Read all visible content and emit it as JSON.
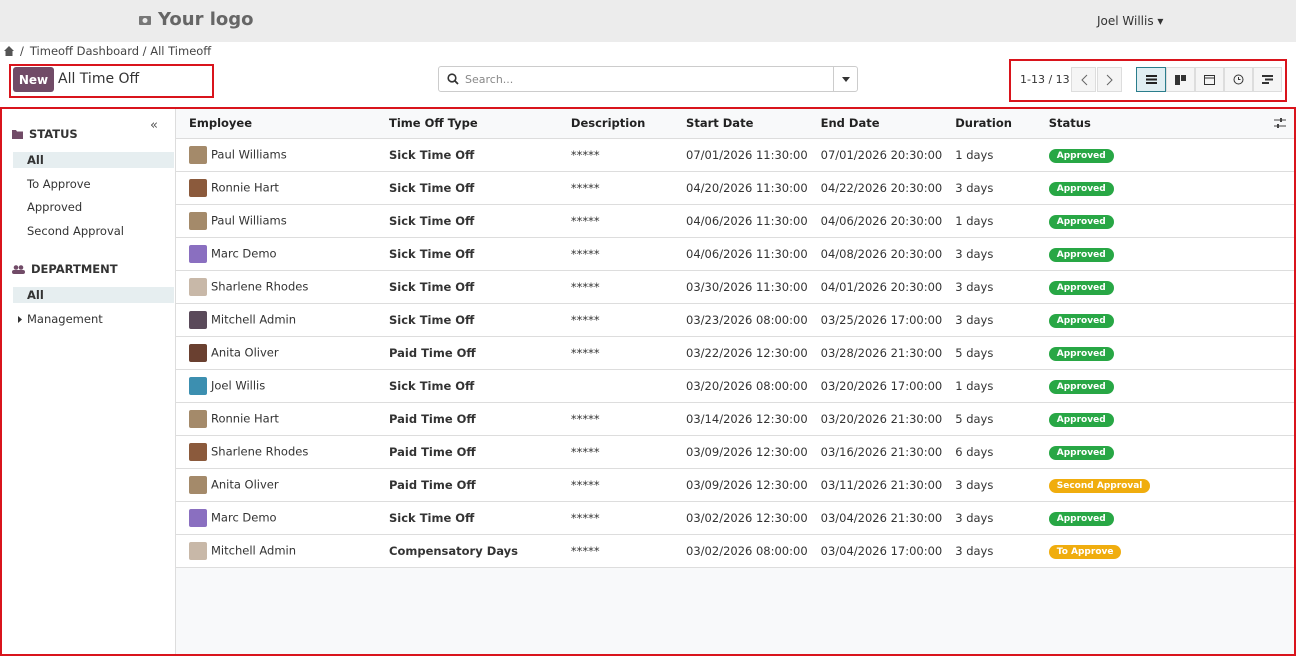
{
  "navbar": {
    "logo": "Your logo",
    "user": "Joel Willis"
  },
  "breadcrumb": {
    "separator": "/",
    "path": "Timeoff Dashboard / All Timeoff"
  },
  "control": {
    "new_button": "New",
    "title": "All Time Off",
    "search_placeholder": "Search...",
    "pager": "1-13 / 13"
  },
  "sidebar": {
    "status": {
      "heading": "STATUS",
      "items": [
        "All",
        "To Approve",
        "Approved",
        "Second Approval"
      ]
    },
    "department": {
      "heading": "DEPARTMENT",
      "items": [
        "All",
        "Management"
      ]
    }
  },
  "table": {
    "columns": [
      "Employee",
      "Time Off Type",
      "Description",
      "Start Date",
      "End Date",
      "Duration",
      "Status"
    ],
    "rows": [
      {
        "cells": [
          "Paul Williams",
          "Sick Time Off",
          "*****",
          "07/01/2026 11:30:00",
          "07/01/2026 20:30:00",
          "1 days",
          "Approved"
        ],
        "status_color": "#28a745"
      },
      {
        "cells": [
          "Ronnie Hart",
          "Sick Time Off",
          "*****",
          "04/20/2026 11:30:00",
          "04/22/2026 20:30:00",
          "3 days",
          "Approved"
        ],
        "status_color": "#28a745"
      },
      {
        "cells": [
          "Paul Williams",
          "Sick Time Off",
          "*****",
          "04/06/2026 11:30:00",
          "04/06/2026 20:30:00",
          "1 days",
          "Approved"
        ],
        "status_color": "#28a745"
      },
      {
        "cells": [
          "Marc Demo",
          "Sick Time Off",
          "*****",
          "04/06/2026 11:30:00",
          "04/08/2026 20:30:00",
          "3 days",
          "Approved"
        ],
        "status_color": "#28a745"
      },
      {
        "cells": [
          "Sharlene Rhodes",
          "Sick Time Off",
          "*****",
          "03/30/2026 11:30:00",
          "04/01/2026 20:30:00",
          "3 days",
          "Approved"
        ],
        "status_color": "#28a745"
      },
      {
        "cells": [
          "Mitchell Admin",
          "Sick Time Off",
          "*****",
          "03/23/2026 08:00:00",
          "03/25/2026 17:00:00",
          "3 days",
          "Approved"
        ],
        "status_color": "#28a745"
      },
      {
        "cells": [
          "Anita Oliver",
          "Paid Time Off",
          "*****",
          "03/22/2026 12:30:00",
          "03/28/2026 21:30:00",
          "5 days",
          "Approved"
        ],
        "status_color": "#28a745"
      },
      {
        "cells": [
          "Joel Willis",
          "Sick Time Off",
          null,
          "03/20/2026 08:00:00",
          "03/20/2026 17:00:00",
          "1 days",
          "Approved"
        ],
        "status_color": "#28a745"
      },
      {
        "cells": [
          "Ronnie Hart",
          "Paid Time Off",
          "*****",
          "03/14/2026 12:30:00",
          "03/20/2026 21:30:00",
          "5 days",
          "Approved"
        ],
        "status_color": "#28a745"
      },
      {
        "cells": [
          "Sharlene Rhodes",
          "Paid Time Off",
          "*****",
          "03/09/2026 12:30:00",
          "03/16/2026 21:30:00",
          "6 days",
          "Approved"
        ],
        "status_color": "#28a745"
      },
      {
        "cells": [
          "Anita Oliver",
          "Paid Time Off",
          "*****",
          "03/09/2026 12:30:00",
          "03/11/2026 21:30:00",
          "3 days",
          "Second Approval"
        ],
        "status_color": "#f0ad0e"
      },
      {
        "cells": [
          "Marc Demo",
          "Sick Time Off",
          "*****",
          "03/02/2026 12:30:00",
          "03/04/2026 21:30:00",
          "3 days",
          "Approved"
        ],
        "status_color": "#28a745"
      },
      {
        "cells": [
          "Mitchell Admin",
          "Compensatory Days",
          "*****",
          "03/02/2026 08:00:00",
          "03/04/2026 17:00:00",
          "3 days",
          "To Approve"
        ],
        "status_color": "#f0ad0e"
      }
    ]
  }
}
